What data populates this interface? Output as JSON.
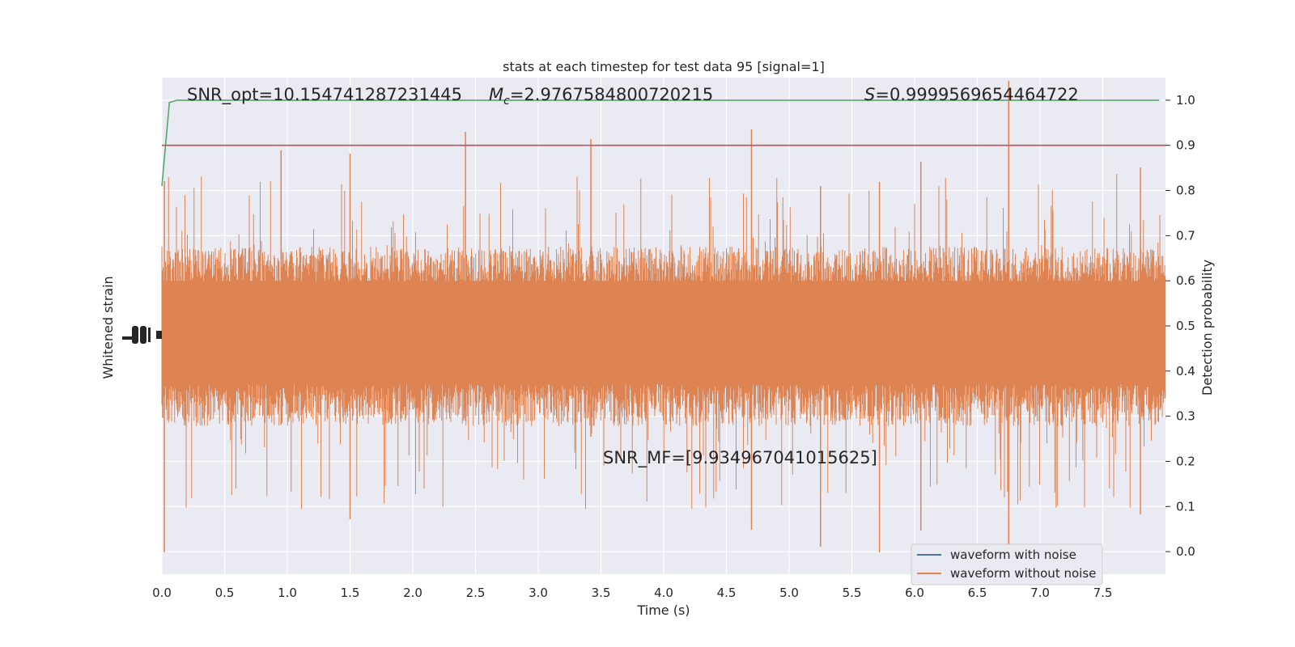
{
  "chart_data": {
    "type": "line",
    "title": "stats at each timestep for test data 95 [signal=1]",
    "xlabel": "Time (s)",
    "ylabel_left": "Whitened strain",
    "ylabel_right": "Detection probability",
    "xlim": [
      0.0,
      8.0
    ],
    "ylim_right": [
      -0.05,
      1.05
    ],
    "x_ticks": [
      0.0,
      0.5,
      1.0,
      1.5,
      2.0,
      2.5,
      3.0,
      3.5,
      4.0,
      4.5,
      5.0,
      5.5,
      6.0,
      6.5,
      7.0,
      7.5
    ],
    "x_tick_labels": [
      "0.0",
      "0.5",
      "1.0",
      "1.5",
      "2.0",
      "2.5",
      "3.0",
      "3.5",
      "4.0",
      "4.5",
      "5.0",
      "5.5",
      "6.0",
      "6.5",
      "7.0",
      "7.5"
    ],
    "y_right_ticks": [
      0.0,
      0.1,
      0.2,
      0.3,
      0.4,
      0.5,
      0.6,
      0.7,
      0.8,
      0.9,
      1.0
    ],
    "y_right_tick_labels": [
      "0.0",
      "0.1",
      "0.2",
      "0.3",
      "0.4",
      "0.5",
      "0.6",
      "0.7",
      "0.8",
      "0.9",
      "1.0"
    ],
    "grid": true,
    "legend_position": "lower-right",
    "series": [
      {
        "name": "waveform with noise",
        "color": "#4c72b0"
      },
      {
        "name": "waveform without noise",
        "color": "#dd8452"
      },
      {
        "color": "#55a868",
        "x": [
          0.0,
          0.06,
          0.12,
          7.95
        ],
        "y": [
          0.81,
          0.995,
          1.0,
          1.0
        ]
      },
      {
        "color": "#c44e52",
        "x": [
          0.0,
          8.0
        ],
        "y": [
          0.9,
          0.9
        ]
      }
    ],
    "annotations": {
      "snr_opt": "SNR_opt=10.154741287231445",
      "mc_symbol": "M",
      "mc_sub": "c",
      "mc_value": "=2.9767584800720215",
      "s_symbol": "S",
      "s_value": "=0.9999569654464722",
      "snr_mf": "SNR_MF=[9.934967041015625]"
    }
  }
}
